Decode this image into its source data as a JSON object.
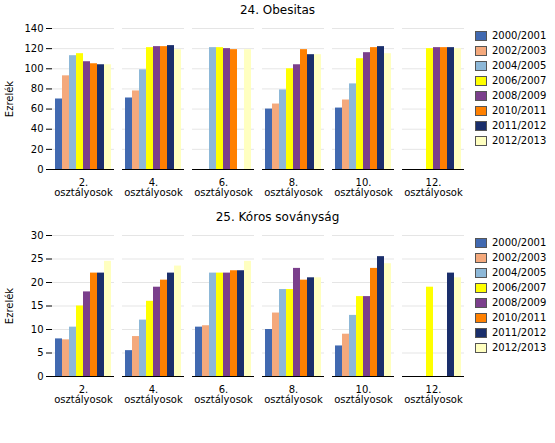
{
  "chart_data": [
    {
      "type": "bar",
      "title": "24. Obesitas",
      "ylabel": "Ezrelék",
      "categories": [
        "2.\nosztályosok",
        "4.\nosztályosok",
        "6.\nosztályosok",
        "8.\nosztályosok",
        "10.\nosztályosok",
        "12.\nosztályosok"
      ],
      "series": [
        {
          "name": "2000/2001",
          "color": "#4169B0",
          "values": [
            70,
            71,
            0,
            60,
            61,
            0
          ]
        },
        {
          "name": "2002/2003",
          "color": "#F4A97C",
          "values": [
            93,
            78,
            0,
            65,
            69,
            0
          ]
        },
        {
          "name": "2004/2005",
          "color": "#8DB8D8",
          "values": [
            113,
            99,
            121,
            79,
            85,
            0
          ]
        },
        {
          "name": "2006/2007",
          "color": "#FFFF00",
          "values": [
            115,
            121,
            121,
            100,
            110,
            120
          ]
        },
        {
          "name": "2008/2009",
          "color": "#7B3F8C",
          "values": [
            107,
            122,
            120,
            104,
            116,
            121
          ]
        },
        {
          "name": "2010/2011",
          "color": "#FF8000",
          "values": [
            105,
            122,
            119,
            119,
            121,
            121
          ]
        },
        {
          "name": "2011/2012",
          "color": "#1A2E6B",
          "values": [
            104,
            123,
            0,
            114,
            122,
            121
          ]
        },
        {
          "name": "2012/2013",
          "color": "#FFFFC0",
          "values": [
            104,
            119,
            119,
            114,
            115,
            120
          ]
        }
      ],
      "ylim": [
        0,
        140
      ],
      "yticks": [
        0,
        20,
        40,
        60,
        80,
        100,
        120,
        140
      ],
      "grid": true,
      "legend": "upper right"
    },
    {
      "type": "bar",
      "title": "25. Kóros soványság",
      "ylabel": "Ezrelék",
      "categories": [
        "2.\nosztályosok",
        "4.\nosztályosok",
        "6.\nosztályosok",
        "8.\nosztályosok",
        "10.\nosztályosok",
        "12.\nosztályosok"
      ],
      "series": [
        {
          "name": "2000/2001",
          "color": "#4169B0",
          "values": [
            8,
            5.5,
            10.5,
            10,
            6.5,
            0
          ]
        },
        {
          "name": "2002/2003",
          "color": "#F4A97C",
          "values": [
            7.8,
            8.5,
            10.8,
            13.5,
            9,
            0
          ]
        },
        {
          "name": "2004/2005",
          "color": "#8DB8D8",
          "values": [
            10.5,
            12,
            22,
            18.5,
            13,
            0
          ]
        },
        {
          "name": "2006/2007",
          "color": "#FFFF00",
          "values": [
            15,
            16,
            22,
            18.5,
            17,
            19
          ]
        },
        {
          "name": "2008/2009",
          "color": "#7B3F8C",
          "values": [
            18,
            19,
            22,
            23,
            17,
            0
          ]
        },
        {
          "name": "2010/2011",
          "color": "#FF8000",
          "values": [
            22,
            20.5,
            22.5,
            20.5,
            23,
            0
          ]
        },
        {
          "name": "2011/2012",
          "color": "#1A2E6B",
          "values": [
            22,
            22,
            22.5,
            21,
            25.5,
            22
          ]
        },
        {
          "name": "2012/2013",
          "color": "#FFFFC0",
          "values": [
            24.5,
            23.5,
            24.5,
            21,
            24,
            21
          ]
        }
      ],
      "ylim": [
        0,
        30
      ],
      "yticks": [
        0,
        5,
        10,
        15,
        20,
        25,
        30
      ],
      "grid": true,
      "legend": "upper right"
    }
  ]
}
